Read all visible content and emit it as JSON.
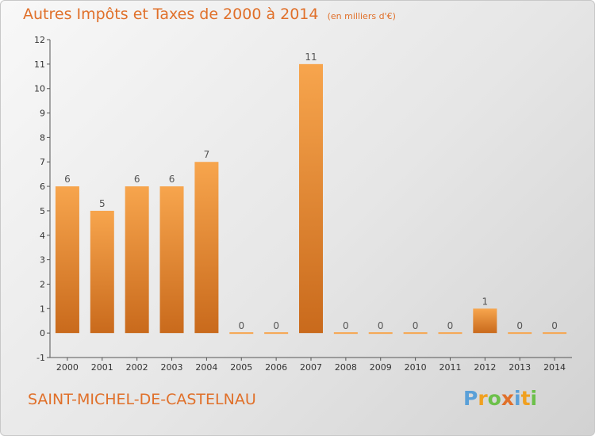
{
  "chart_data": {
    "type": "bar",
    "title": "Autres Impôts et Taxes de 2000 à 2014",
    "units": "(en milliers d'€)",
    "categories": [
      "2000",
      "2001",
      "2002",
      "2003",
      "2004",
      "2005",
      "2006",
      "2007",
      "2008",
      "2009",
      "2010",
      "2011",
      "2012",
      "2013",
      "2014"
    ],
    "values": [
      6,
      5,
      6,
      6,
      7,
      0,
      0,
      11,
      0,
      0,
      0,
      0,
      1,
      0,
      0
    ],
    "ylim": [
      -1,
      12
    ],
    "yticks": [
      -1,
      0,
      1,
      2,
      3,
      4,
      5,
      6,
      7,
      8,
      9,
      10,
      11,
      12
    ],
    "grid": false,
    "bar_color_top": "#f7a54d",
    "bar_color_bottom": "#c96a1c"
  },
  "footer": {
    "commune": "SAINT-MICHEL-DE-CASTELNAU",
    "logo_text": "Proxiti",
    "logo_colors": [
      "#5aa0d8",
      "#f0a020",
      "#6cc04a",
      "#e0702a",
      "#5aa0d8",
      "#f0a020",
      "#6cc04a"
    ]
  }
}
